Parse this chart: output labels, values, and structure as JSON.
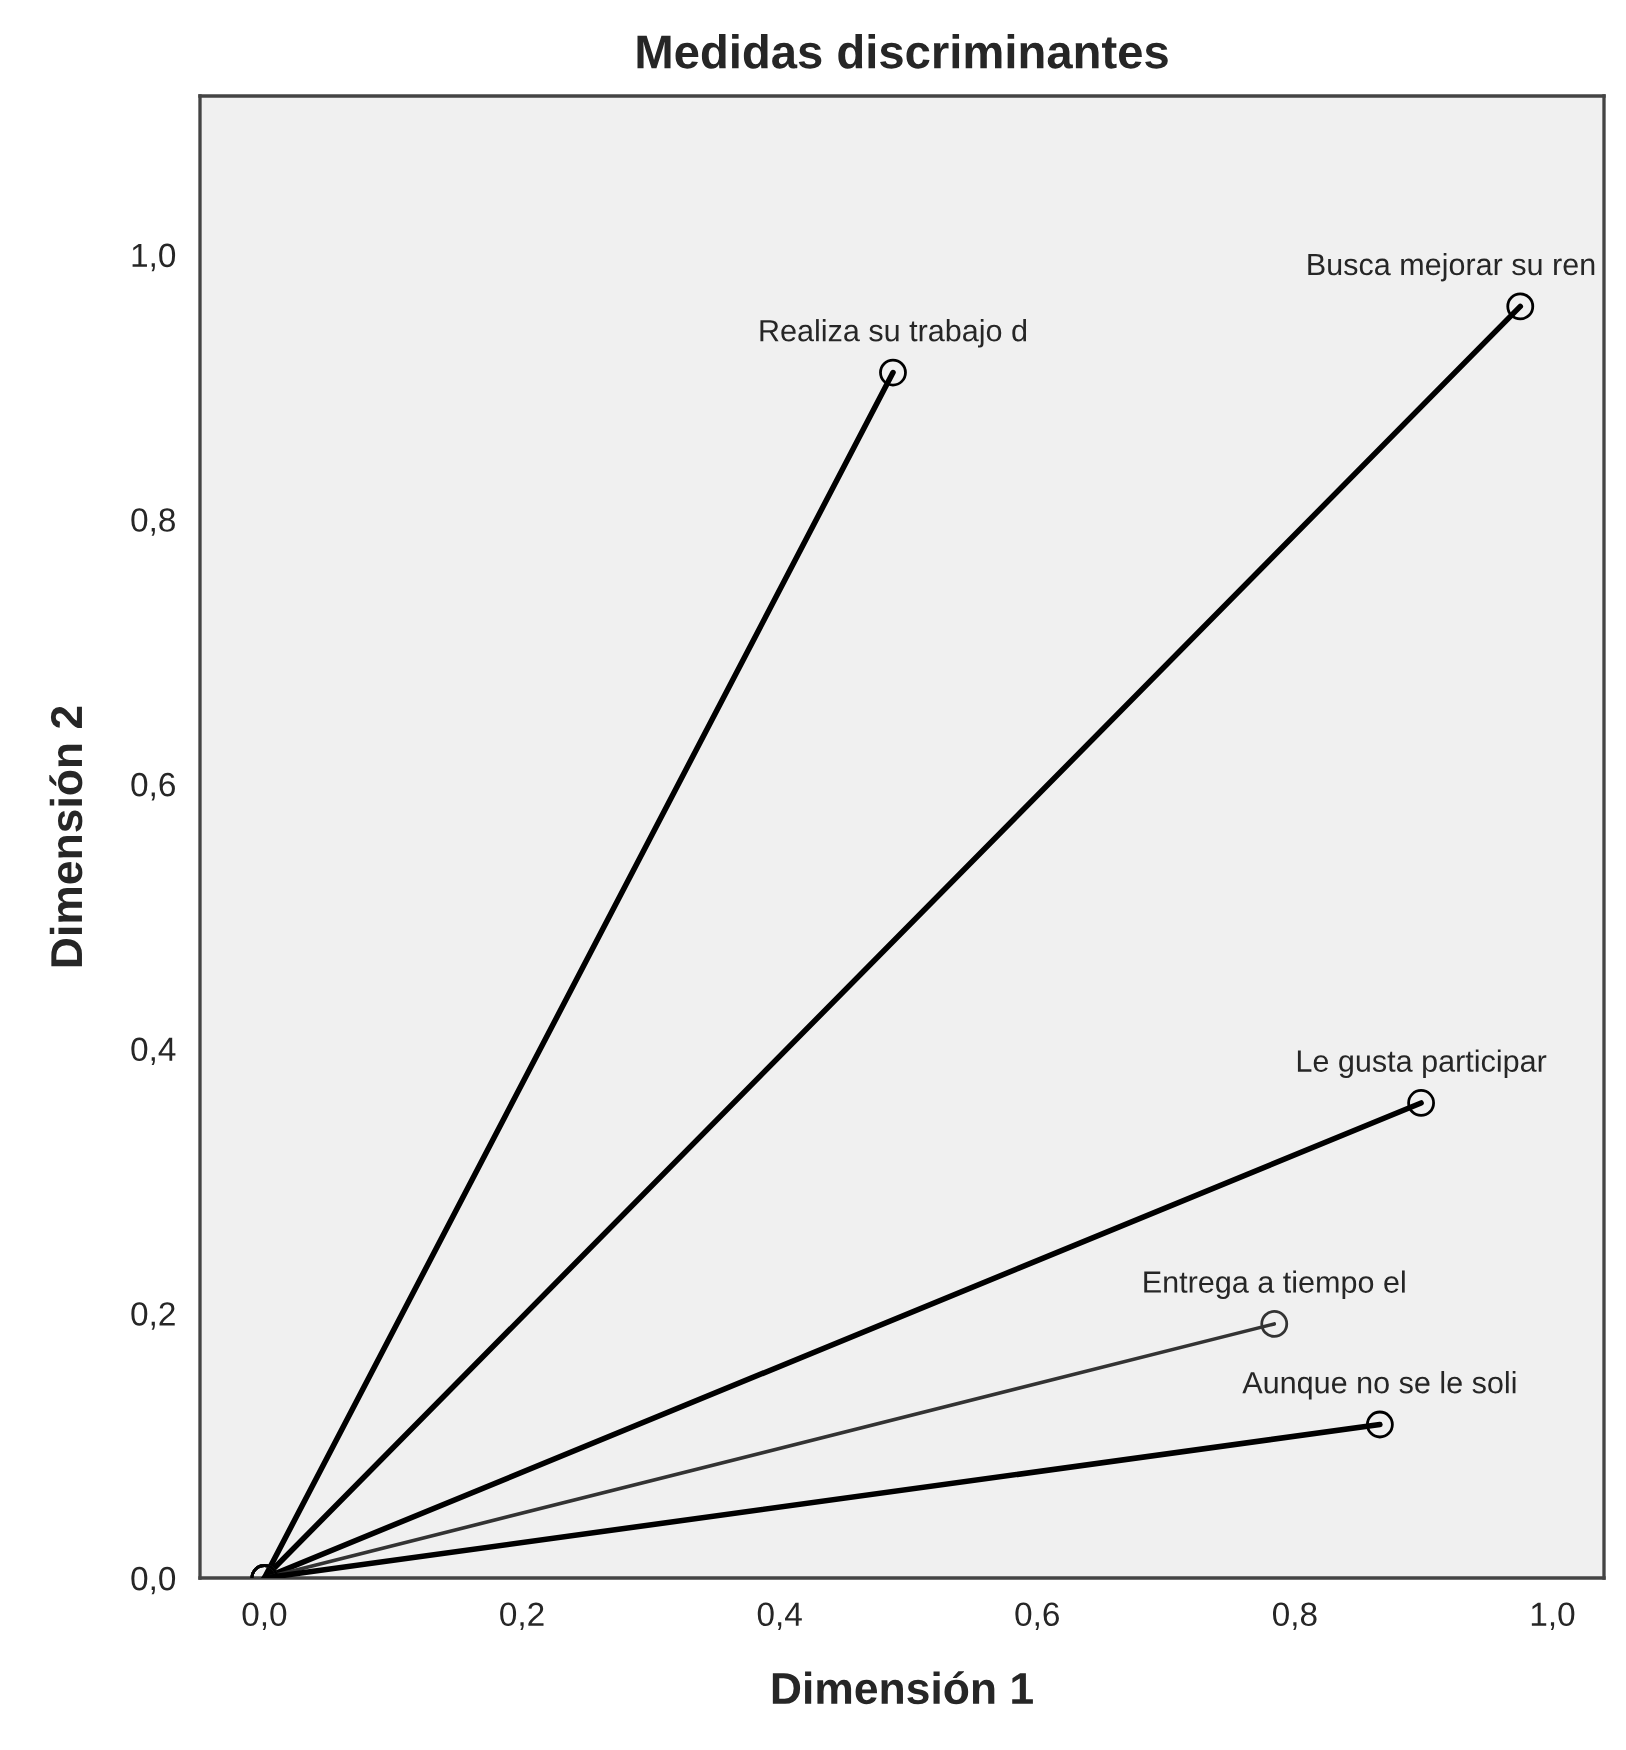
{
  "chart_data": {
    "type": "line",
    "title": "Medidas discriminantes",
    "xlabel": "Dimensión 1",
    "ylabel": "Dimensión 2",
    "series": [
      {
        "name": "Realiza su trabajo d",
        "color": "#000000",
        "x": [
          0,
          0.488
        ],
        "values": [
          0,
          0.911
        ]
      },
      {
        "name": "Busca mejorar su ren",
        "color": "#000000",
        "x": [
          0,
          0.975
        ],
        "values": [
          0,
          0.961
        ]
      },
      {
        "name": "Le gusta participar",
        "color": "#000000",
        "x": [
          0,
          0.898
        ],
        "values": [
          0,
          0.359
        ]
      },
      {
        "name": "Entrega a tiempo el",
        "color": "#333333",
        "x": [
          0,
          0.784
        ],
        "values": [
          0,
          0.192
        ]
      },
      {
        "name": "Aunque no se le soli",
        "color": "#000000",
        "x": [
          0,
          0.866
        ],
        "values": [
          0,
          0.116
        ]
      }
    ],
    "xlim": [
      -0.05,
      1.04
    ],
    "ylim": [
      0,
      1.12
    ],
    "xticks": [
      {
        "value": 0,
        "label": "0,0"
      },
      {
        "value": 0.2,
        "label": "0,2"
      },
      {
        "value": 0.4,
        "label": "0,4"
      },
      {
        "value": 0.6,
        "label": "0,6"
      },
      {
        "value": 0.8,
        "label": "0,8"
      },
      {
        "value": 1.0,
        "label": "1,0"
      }
    ],
    "yticks": [
      {
        "value": 0,
        "label": "0,0"
      },
      {
        "value": 0.2,
        "label": "0,2"
      },
      {
        "value": 0.4,
        "label": "0,4"
      },
      {
        "value": 0.6,
        "label": "0,6"
      },
      {
        "value": 0.8,
        "label": "0,8"
      },
      {
        "value": 1.0,
        "label": "1,0"
      }
    ],
    "grid": false,
    "legend": false,
    "marker": "circle",
    "line_style": "solid"
  }
}
